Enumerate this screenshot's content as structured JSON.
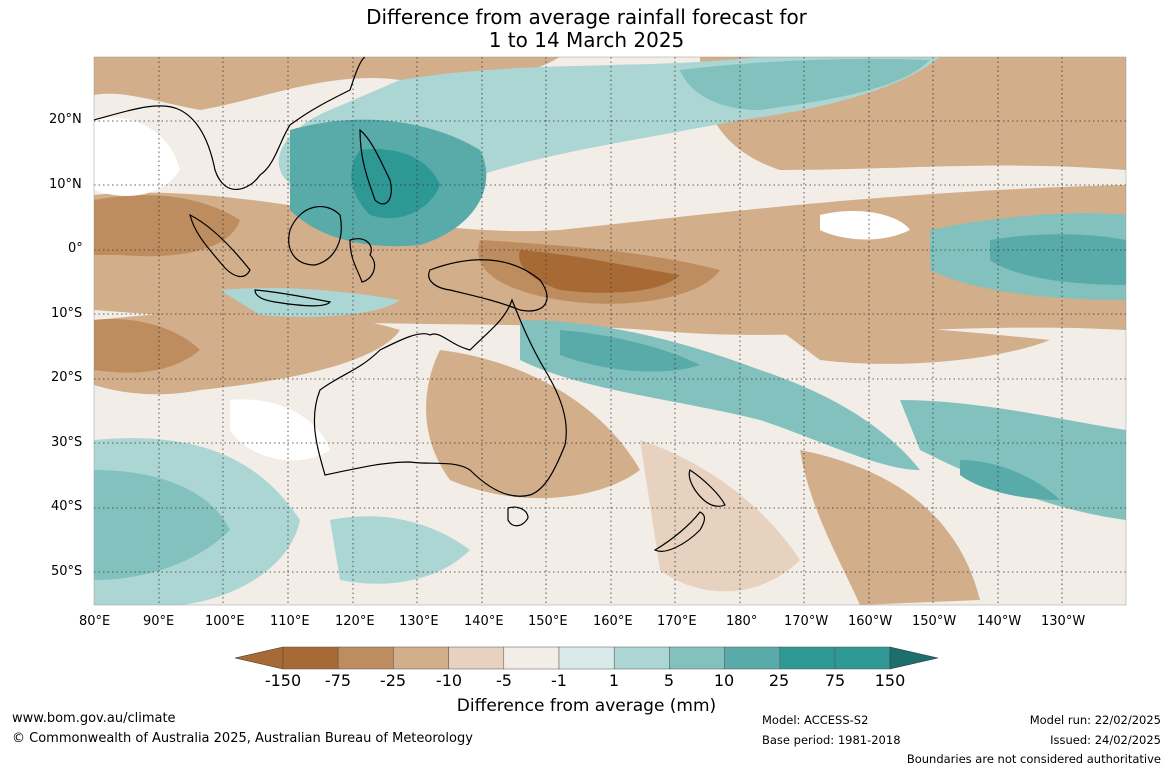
{
  "title": {
    "line1": "Difference from average rainfall forecast for",
    "line2": "1 to 14 March 2025"
  },
  "axes": {
    "x_labels": [
      "80°E",
      "90°E",
      "100°E",
      "110°E",
      "120°E",
      "130°E",
      "140°E",
      "150°E",
      "160°E",
      "170°E",
      "180°",
      "170°W",
      "160°W",
      "150°W",
      "140°W",
      "130°W"
    ],
    "y_labels": [
      "20°N",
      "10°N",
      "0°",
      "10°S",
      "20°S",
      "30°S",
      "40°S",
      "50°S"
    ]
  },
  "colorbar": {
    "label": "Difference from average (mm)",
    "ticks": [
      "-150",
      "-75",
      "-25",
      "-10",
      "-5",
      "-1",
      "1",
      "5",
      "10",
      "25",
      "75",
      "150"
    ],
    "colors": [
      "#a86a35",
      "#be8d5f",
      "#d2ae8a",
      "#e6d2bf",
      "#f3ede7",
      "#ffffff",
      "#d8ebea",
      "#acd6d3",
      "#82c1be",
      "#58aba9",
      "#2e9895",
      "#1d6e6c"
    ]
  },
  "footer": {
    "website": "www.bom.gov.au/climate",
    "copyright": "© Commonwealth of Australia 2025, Australian Bureau of Meteorology",
    "model": "Model: ACCESS-S2",
    "base_period": "Base period: 1981-2018",
    "model_run": "Model run: 22/02/2025",
    "issued": "Issued: 24/02/2025",
    "disclaimer": "Boundaries are not considered authoritative"
  }
}
